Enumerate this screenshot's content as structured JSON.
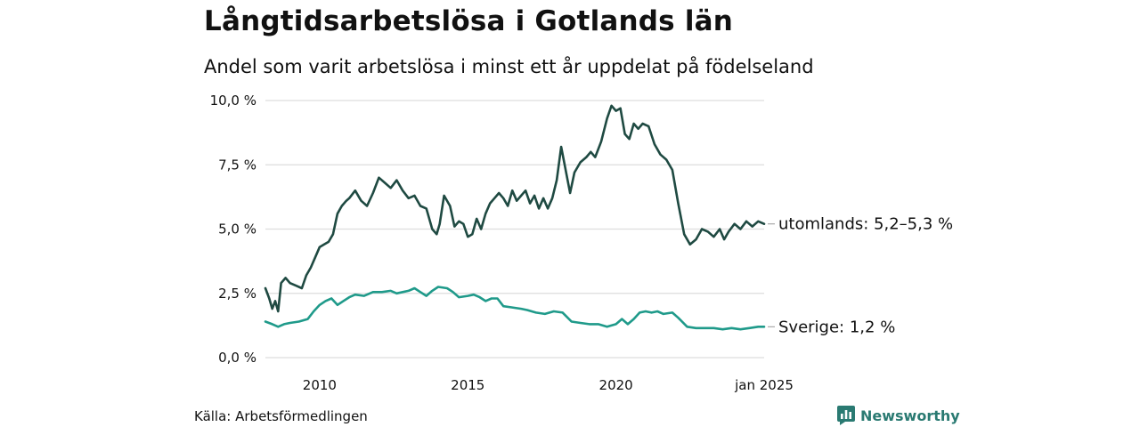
{
  "title": "Långtidsarbetslösa i Gotlands län",
  "subtitle": "Andel som varit arbetslösa i minst ett år uppdelat på födelseland",
  "source": "Källa: Arbetsförmedlingen",
  "brand": "Newsworthy",
  "colors": {
    "utrikes": "#1f4a42",
    "sverige": "#1f9a8a",
    "grid": "#dddddd",
    "brand": "#2a7a72"
  },
  "chart_data": {
    "type": "line",
    "ylim": [
      0,
      10
    ],
    "xlim": [
      2008.17,
      2025.0
    ],
    "y_ticks": [
      {
        "value": 0,
        "label": "0,0 %"
      },
      {
        "value": 2.5,
        "label": "2,5 %"
      },
      {
        "value": 5,
        "label": "5,0 %"
      },
      {
        "value": 7.5,
        "label": "7,5 %"
      },
      {
        "value": 10,
        "label": "10,0 %"
      }
    ],
    "x_ticks": [
      {
        "value": 2010,
        "label": "2010"
      },
      {
        "value": 2015,
        "label": "2015"
      },
      {
        "value": 2020,
        "label": "2020"
      },
      {
        "value": 2025,
        "label": "jan 2025"
      }
    ],
    "series": [
      {
        "name": "utomlands",
        "end_label": "utomlands: 5,2–5,3 %",
        "points": [
          [
            2008.17,
            2.7
          ],
          [
            2008.3,
            2.3
          ],
          [
            2008.4,
            1.9
          ],
          [
            2008.5,
            2.2
          ],
          [
            2008.6,
            1.8
          ],
          [
            2008.7,
            2.9
          ],
          [
            2008.85,
            3.1
          ],
          [
            2009.0,
            2.9
          ],
          [
            2009.2,
            2.8
          ],
          [
            2009.4,
            2.7
          ],
          [
            2009.55,
            3.2
          ],
          [
            2009.7,
            3.5
          ],
          [
            2009.85,
            3.9
          ],
          [
            2010.0,
            4.3
          ],
          [
            2010.15,
            4.4
          ],
          [
            2010.3,
            4.5
          ],
          [
            2010.45,
            4.8
          ],
          [
            2010.6,
            5.6
          ],
          [
            2010.75,
            5.9
          ],
          [
            2010.9,
            6.1
          ],
          [
            2011.0,
            6.2
          ],
          [
            2011.2,
            6.5
          ],
          [
            2011.4,
            6.1
          ],
          [
            2011.6,
            5.9
          ],
          [
            2011.8,
            6.4
          ],
          [
            2012.0,
            7.0
          ],
          [
            2012.2,
            6.8
          ],
          [
            2012.4,
            6.6
          ],
          [
            2012.6,
            6.9
          ],
          [
            2012.8,
            6.5
          ],
          [
            2013.0,
            6.2
          ],
          [
            2013.2,
            6.3
          ],
          [
            2013.4,
            5.9
          ],
          [
            2013.6,
            5.8
          ],
          [
            2013.8,
            5.0
          ],
          [
            2013.95,
            4.8
          ],
          [
            2014.05,
            5.2
          ],
          [
            2014.2,
            6.3
          ],
          [
            2014.4,
            5.9
          ],
          [
            2014.55,
            5.1
          ],
          [
            2014.7,
            5.3
          ],
          [
            2014.85,
            5.2
          ],
          [
            2015.0,
            4.7
          ],
          [
            2015.15,
            4.8
          ],
          [
            2015.3,
            5.4
          ],
          [
            2015.45,
            5.0
          ],
          [
            2015.6,
            5.6
          ],
          [
            2015.75,
            6.0
          ],
          [
            2015.9,
            6.2
          ],
          [
            2016.05,
            6.4
          ],
          [
            2016.2,
            6.2
          ],
          [
            2016.35,
            5.9
          ],
          [
            2016.5,
            6.5
          ],
          [
            2016.65,
            6.1
          ],
          [
            2016.8,
            6.3
          ],
          [
            2016.95,
            6.5
          ],
          [
            2017.1,
            6.0
          ],
          [
            2017.25,
            6.3
          ],
          [
            2017.4,
            5.8
          ],
          [
            2017.55,
            6.2
          ],
          [
            2017.7,
            5.8
          ],
          [
            2017.85,
            6.2
          ],
          [
            2018.0,
            6.9
          ],
          [
            2018.15,
            8.2
          ],
          [
            2018.3,
            7.3
          ],
          [
            2018.45,
            6.4
          ],
          [
            2018.6,
            7.2
          ],
          [
            2018.8,
            7.6
          ],
          [
            2019.0,
            7.8
          ],
          [
            2019.15,
            8.0
          ],
          [
            2019.3,
            7.8
          ],
          [
            2019.5,
            8.4
          ],
          [
            2019.7,
            9.3
          ],
          [
            2019.85,
            9.8
          ],
          [
            2020.0,
            9.6
          ],
          [
            2020.15,
            9.7
          ],
          [
            2020.3,
            8.7
          ],
          [
            2020.45,
            8.5
          ],
          [
            2020.6,
            9.1
          ],
          [
            2020.75,
            8.9
          ],
          [
            2020.9,
            9.1
          ],
          [
            2021.1,
            9.0
          ],
          [
            2021.3,
            8.3
          ],
          [
            2021.5,
            7.9
          ],
          [
            2021.7,
            7.7
          ],
          [
            2021.9,
            7.3
          ],
          [
            2022.1,
            6.0
          ],
          [
            2022.3,
            4.8
          ],
          [
            2022.5,
            4.4
          ],
          [
            2022.7,
            4.6
          ],
          [
            2022.9,
            5.0
          ],
          [
            2023.1,
            4.9
          ],
          [
            2023.3,
            4.7
          ],
          [
            2023.5,
            5.0
          ],
          [
            2023.65,
            4.6
          ],
          [
            2023.8,
            4.9
          ],
          [
            2024.0,
            5.2
          ],
          [
            2024.2,
            5.0
          ],
          [
            2024.4,
            5.3
          ],
          [
            2024.6,
            5.1
          ],
          [
            2024.8,
            5.3
          ],
          [
            2025.0,
            5.2
          ]
        ]
      },
      {
        "name": "Sverige",
        "end_label": "Sverige: 1,2 %",
        "points": [
          [
            2008.17,
            1.4
          ],
          [
            2008.4,
            1.3
          ],
          [
            2008.6,
            1.2
          ],
          [
            2008.8,
            1.3
          ],
          [
            2009.0,
            1.35
          ],
          [
            2009.3,
            1.4
          ],
          [
            2009.6,
            1.5
          ],
          [
            2009.8,
            1.8
          ],
          [
            2010.0,
            2.05
          ],
          [
            2010.2,
            2.2
          ],
          [
            2010.4,
            2.3
          ],
          [
            2010.6,
            2.05
          ],
          [
            2010.8,
            2.2
          ],
          [
            2011.0,
            2.35
          ],
          [
            2011.2,
            2.45
          ],
          [
            2011.5,
            2.4
          ],
          [
            2011.8,
            2.55
          ],
          [
            2012.1,
            2.55
          ],
          [
            2012.4,
            2.6
          ],
          [
            2012.6,
            2.5
          ],
          [
            2012.8,
            2.55
          ],
          [
            2013.0,
            2.6
          ],
          [
            2013.2,
            2.7
          ],
          [
            2013.4,
            2.55
          ],
          [
            2013.6,
            2.4
          ],
          [
            2013.8,
            2.6
          ],
          [
            2014.0,
            2.75
          ],
          [
            2014.3,
            2.7
          ],
          [
            2014.5,
            2.55
          ],
          [
            2014.7,
            2.35
          ],
          [
            2015.0,
            2.4
          ],
          [
            2015.2,
            2.45
          ],
          [
            2015.4,
            2.35
          ],
          [
            2015.6,
            2.2
          ],
          [
            2015.8,
            2.3
          ],
          [
            2016.0,
            2.3
          ],
          [
            2016.2,
            2.0
          ],
          [
            2016.5,
            1.95
          ],
          [
            2016.8,
            1.9
          ],
          [
            2017.0,
            1.85
          ],
          [
            2017.3,
            1.75
          ],
          [
            2017.6,
            1.7
          ],
          [
            2017.9,
            1.8
          ],
          [
            2018.2,
            1.75
          ],
          [
            2018.5,
            1.4
          ],
          [
            2018.8,
            1.35
          ],
          [
            2019.1,
            1.3
          ],
          [
            2019.4,
            1.3
          ],
          [
            2019.7,
            1.2
          ],
          [
            2020.0,
            1.3
          ],
          [
            2020.2,
            1.5
          ],
          [
            2020.4,
            1.3
          ],
          [
            2020.6,
            1.5
          ],
          [
            2020.8,
            1.75
          ],
          [
            2021.0,
            1.8
          ],
          [
            2021.2,
            1.75
          ],
          [
            2021.4,
            1.8
          ],
          [
            2021.6,
            1.7
          ],
          [
            2021.9,
            1.75
          ],
          [
            2022.1,
            1.55
          ],
          [
            2022.4,
            1.2
          ],
          [
            2022.7,
            1.15
          ],
          [
            2023.0,
            1.15
          ],
          [
            2023.3,
            1.15
          ],
          [
            2023.6,
            1.1
          ],
          [
            2023.9,
            1.15
          ],
          [
            2024.2,
            1.1
          ],
          [
            2024.5,
            1.15
          ],
          [
            2024.8,
            1.2
          ],
          [
            2025.0,
            1.2
          ]
        ]
      }
    ],
    "grid": true,
    "legend": "end-of-line labels"
  }
}
